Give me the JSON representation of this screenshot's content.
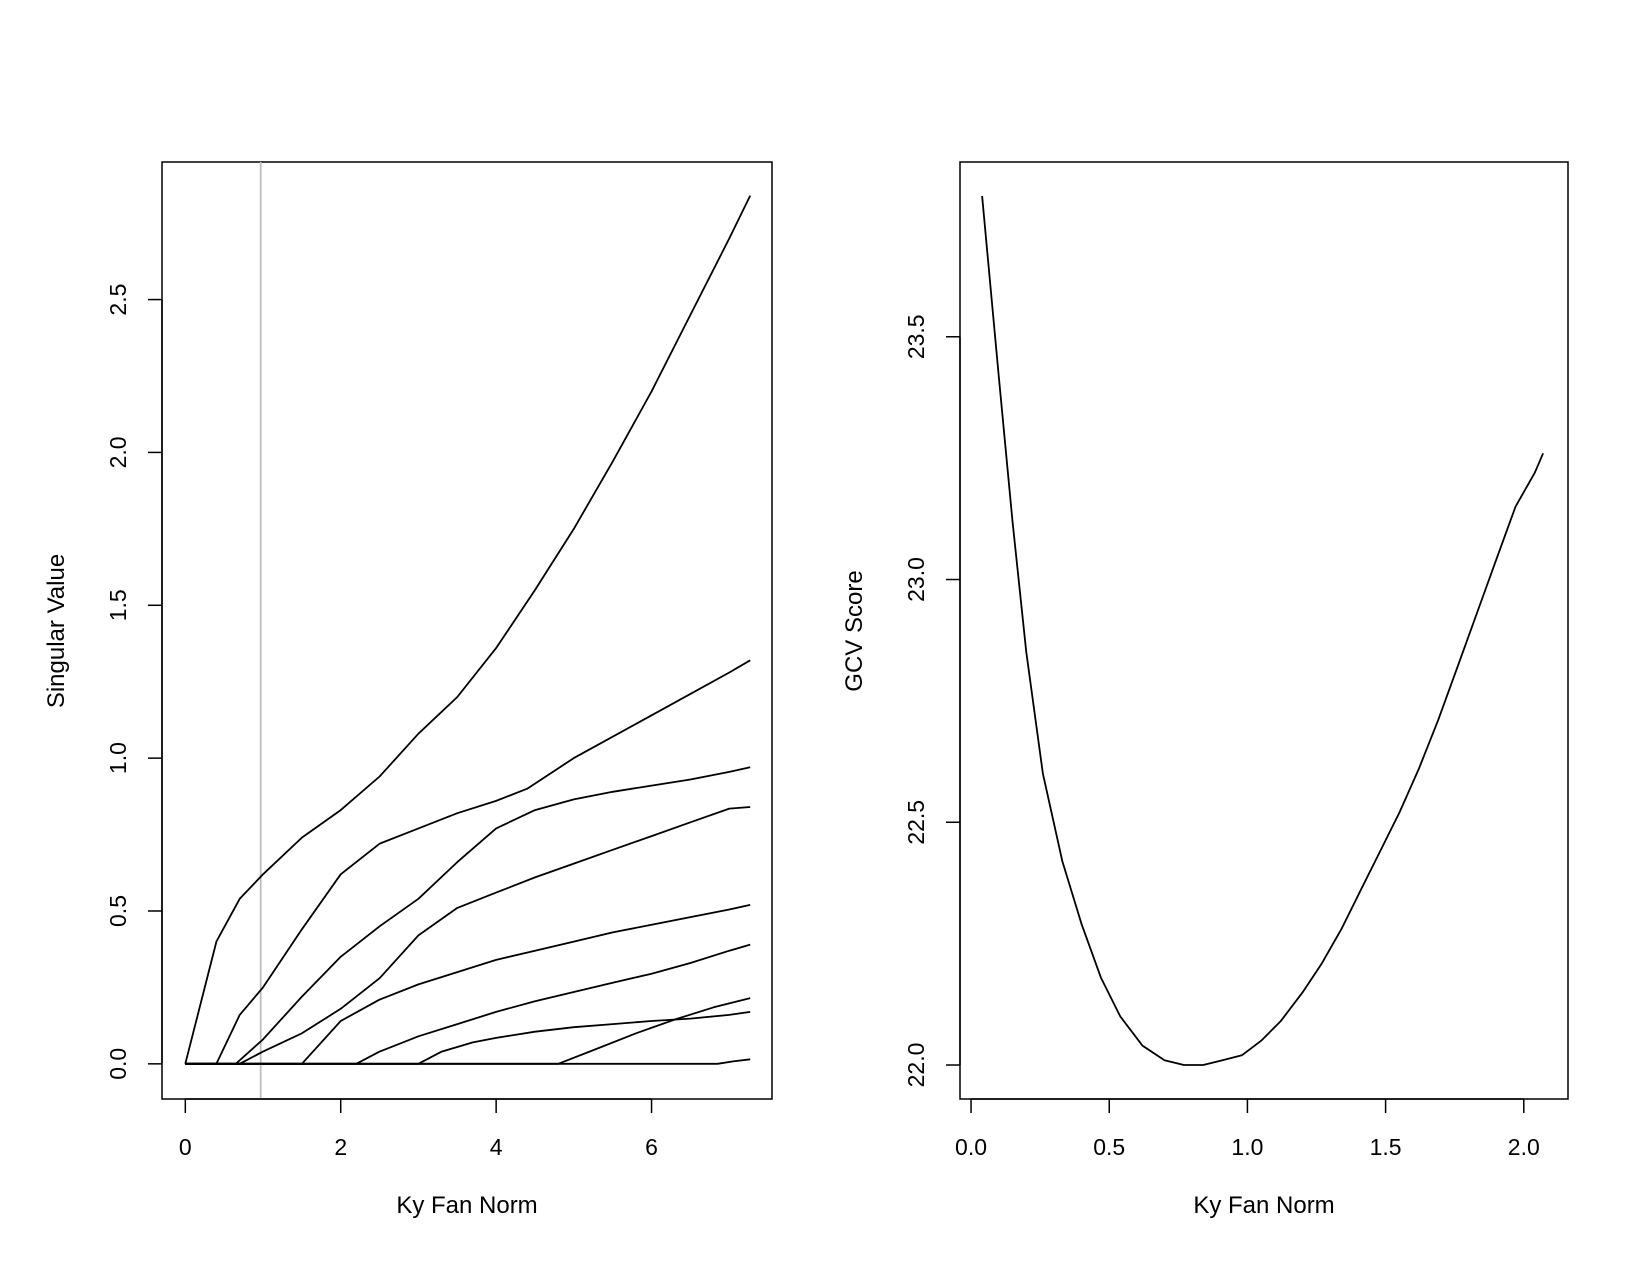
{
  "chart_data": [
    {
      "type": "line",
      "xlabel": "Ky Fan Norm",
      "ylabel": "Singular Value",
      "xlim": [
        -0.3,
        7.55
      ],
      "ylim": [
        -0.115,
        2.95
      ],
      "xticks": [
        0,
        2,
        4,
        6
      ],
      "xtick_labels": [
        "0",
        "2",
        "4",
        "6"
      ],
      "yticks": [
        0.0,
        0.5,
        1.0,
        1.5,
        2.0,
        2.5
      ],
      "ytick_labels": [
        "0.0",
        "0.5",
        "1.0",
        "1.5",
        "2.0",
        "2.5"
      ],
      "grid": false,
      "reference_line": {
        "orientation": "vertical",
        "x": 0.97,
        "color": "#bdbdbd"
      },
      "line_color": "#000000",
      "series": [
        {
          "x": [
            0,
            0.4,
            0.7,
            1.0,
            1.5,
            2.0,
            2.5,
            3.0,
            3.5,
            4.0,
            4.5,
            5.0,
            5.5,
            6.0,
            6.5,
            7.0,
            7.27
          ],
          "y": [
            0,
            0.4,
            0.54,
            0.62,
            0.74,
            0.83,
            0.94,
            1.08,
            1.2,
            1.36,
            1.55,
            1.75,
            1.97,
            2.2,
            2.45,
            2.7,
            2.84
          ]
        },
        {
          "x": [
            0,
            0.4,
            0.7,
            1.0,
            1.5,
            2.0,
            2.5,
            3.0,
            3.5,
            4.0,
            4.4,
            5.0,
            5.5,
            6.0,
            6.5,
            7.0,
            7.27
          ],
          "y": [
            0,
            0,
            0.16,
            0.25,
            0.44,
            0.62,
            0.72,
            0.77,
            0.82,
            0.86,
            0.9,
            1.0,
            1.07,
            1.14,
            1.21,
            1.28,
            1.32
          ]
        },
        {
          "x": [
            0,
            0.65,
            1.0,
            1.5,
            2.0,
            2.5,
            3.0,
            3.5,
            4.0,
            4.5,
            5.0,
            5.5,
            6.0,
            6.5,
            7.0,
            7.27
          ],
          "y": [
            0,
            0,
            0.08,
            0.22,
            0.35,
            0.45,
            0.54,
            0.66,
            0.77,
            0.83,
            0.865,
            0.89,
            0.91,
            0.93,
            0.955,
            0.97
          ]
        },
        {
          "x": [
            0,
            0.7,
            1.0,
            1.5,
            2.0,
            2.5,
            3.0,
            3.5,
            4.0,
            4.5,
            5.0,
            5.5,
            6.0,
            6.5,
            7.0,
            7.27
          ],
          "y": [
            0,
            0,
            0.04,
            0.1,
            0.18,
            0.28,
            0.42,
            0.51,
            0.56,
            0.61,
            0.655,
            0.7,
            0.745,
            0.79,
            0.835,
            0.84
          ]
        },
        {
          "x": [
            0,
            1.5,
            2.0,
            2.5,
            3.0,
            3.5,
            4.0,
            4.5,
            5.0,
            5.5,
            6.0,
            6.5,
            7.0,
            7.27
          ],
          "y": [
            0,
            0,
            0.14,
            0.21,
            0.26,
            0.3,
            0.34,
            0.37,
            0.4,
            0.43,
            0.455,
            0.48,
            0.505,
            0.52
          ]
        },
        {
          "x": [
            0,
            2.2,
            2.5,
            3.0,
            3.5,
            4.0,
            4.5,
            5.0,
            5.5,
            6.0,
            6.5,
            7.0,
            7.27
          ],
          "y": [
            0,
            0,
            0.04,
            0.09,
            0.13,
            0.17,
            0.205,
            0.235,
            0.265,
            0.295,
            0.33,
            0.37,
            0.39
          ]
        },
        {
          "x": [
            0,
            3.0,
            3.3,
            3.7,
            4.0,
            4.5,
            5.0,
            5.5,
            6.0,
            6.5,
            7.0,
            7.27
          ],
          "y": [
            0,
            0,
            0.04,
            0.07,
            0.085,
            0.105,
            0.12,
            0.13,
            0.14,
            0.148,
            0.16,
            0.17
          ]
        },
        {
          "x": [
            0,
            4.8,
            5.3,
            5.8,
            6.3,
            6.8,
            7.27
          ],
          "y": [
            0,
            0,
            0.05,
            0.1,
            0.145,
            0.185,
            0.215
          ]
        },
        {
          "x": [
            0,
            6.85,
            7.05,
            7.27
          ],
          "y": [
            0,
            0,
            0.008,
            0.015
          ]
        }
      ]
    },
    {
      "type": "line",
      "xlabel": "Ky Fan Norm",
      "ylabel": "GCV Score",
      "xlim": [
        -0.04,
        2.16
      ],
      "ylim": [
        21.93,
        23.86
      ],
      "xticks": [
        0.0,
        0.5,
        1.0,
        1.5,
        2.0
      ],
      "xtick_labels": [
        "0.0",
        "0.5",
        "1.0",
        "1.5",
        "2.0"
      ],
      "yticks": [
        22.0,
        22.5,
        23.0,
        23.5
      ],
      "ytick_labels": [
        "22.0",
        "22.5",
        "23.0",
        "23.5"
      ],
      "grid": false,
      "line_color": "#000000",
      "series": [
        {
          "x": [
            0.04,
            0.1,
            0.15,
            0.2,
            0.26,
            0.33,
            0.4,
            0.47,
            0.54,
            0.62,
            0.7,
            0.77,
            0.84,
            0.91,
            0.98,
            1.05,
            1.12,
            1.2,
            1.27,
            1.34,
            1.41,
            1.48,
            1.55,
            1.62,
            1.69,
            1.76,
            1.83,
            1.9,
            1.97,
            2.04,
            2.07
          ],
          "y": [
            23.79,
            23.42,
            23.12,
            22.85,
            22.6,
            22.42,
            22.29,
            22.18,
            22.1,
            22.04,
            22.01,
            22.0,
            22.0,
            22.01,
            22.02,
            22.05,
            22.09,
            22.15,
            22.21,
            22.28,
            22.36,
            22.44,
            22.52,
            22.61,
            22.71,
            22.82,
            22.93,
            23.04,
            23.15,
            23.22,
            23.26
          ]
        }
      ]
    }
  ]
}
